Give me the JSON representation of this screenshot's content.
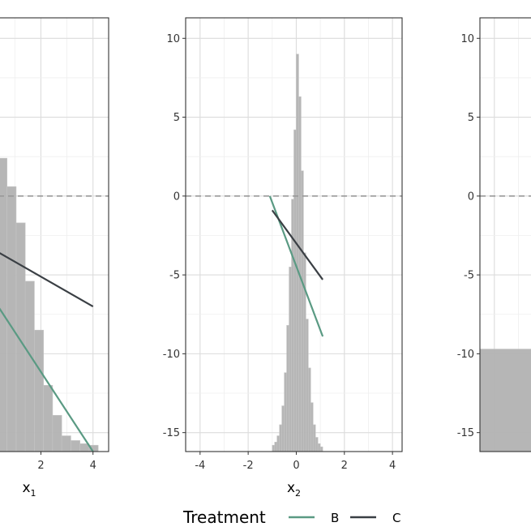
{
  "chart_data": [
    {
      "type": "line",
      "panel": "left",
      "xlabel": "x",
      "xlabel_sub": "1",
      "xlim": [
        -1.5,
        4.6
      ],
      "ylim": [
        -16.2,
        11.3
      ],
      "x_ticks": [
        0,
        2,
        4
      ],
      "y_ticks": [
        10,
        5,
        0,
        -5,
        -10,
        -15
      ],
      "show_y_tick_labels": false,
      "reference_line_y": 0,
      "histogram": {
        "bin_width": 0.35,
        "bins": [
          {
            "x0": -1.4,
            "height": 10.5
          },
          {
            "x0": -1.05,
            "height": 10.0
          },
          {
            "x0": -0.7,
            "height": 8.6
          },
          {
            "x0": -0.35,
            "height": 6.3
          },
          {
            "x0": 0.0,
            "height": 4.4
          },
          {
            "x0": 0.35,
            "height": 2.4
          },
          {
            "x0": 0.7,
            "height": 0.6
          },
          {
            "x0": 1.05,
            "height": -1.7
          },
          {
            "x0": 1.4,
            "height": -5.4
          },
          {
            "x0": 1.75,
            "height": -8.5
          },
          {
            "x0": 2.1,
            "height": -12.0
          },
          {
            "x0": 2.45,
            "height": -13.9
          },
          {
            "x0": 2.8,
            "height": -15.2
          },
          {
            "x0": 3.15,
            "height": -15.5
          },
          {
            "x0": 3.5,
            "height": -15.7
          },
          {
            "x0": 3.85,
            "height": -15.8
          }
        ]
      },
      "series": [
        {
          "name": "B",
          "color": "#5a9a83",
          "x": [
            -1.5,
            4.0
          ],
          "y": [
            -2.3,
            -16.2
          ]
        },
        {
          "name": "C",
          "color": "#3a3f44",
          "x": [
            -1.5,
            4.0
          ],
          "y": [
            -1.8,
            -7.0
          ]
        }
      ]
    },
    {
      "type": "line",
      "panel": "middle",
      "xlabel": "x",
      "xlabel_sub": "2",
      "xlim": [
        -4.6,
        4.4
      ],
      "ylim": [
        -16.2,
        11.3
      ],
      "x_ticks": [
        -4,
        -2,
        0,
        2,
        4
      ],
      "x_tick_labels": [
        "-4",
        "-2",
        "0",
        "2",
        "4"
      ],
      "y_ticks": [
        10,
        5,
        0,
        -5,
        -10,
        -15
      ],
      "y_tick_labels": [
        "10",
        "5",
        "0",
        "-5",
        "-10",
        "-15"
      ],
      "show_y_tick_labels": true,
      "reference_line_y": 0,
      "histogram": {
        "bin_width": 0.1,
        "bins": [
          {
            "x0": -1.0,
            "height": -15.8
          },
          {
            "x0": -0.9,
            "height": -15.6
          },
          {
            "x0": -0.8,
            "height": -15.2
          },
          {
            "x0": -0.7,
            "height": -14.5
          },
          {
            "x0": -0.6,
            "height": -13.3
          },
          {
            "x0": -0.5,
            "height": -11.2
          },
          {
            "x0": -0.4,
            "height": -8.2
          },
          {
            "x0": -0.3,
            "height": -4.5
          },
          {
            "x0": -0.2,
            "height": -0.2
          },
          {
            "x0": -0.1,
            "height": 4.2
          },
          {
            "x0": 0.0,
            "height": 9.0
          },
          {
            "x0": 0.1,
            "height": 6.3
          },
          {
            "x0": 0.2,
            "height": 1.6
          },
          {
            "x0": 0.3,
            "height": -3.6
          },
          {
            "x0": 0.4,
            "height": -7.8
          },
          {
            "x0": 0.5,
            "height": -10.9
          },
          {
            "x0": 0.6,
            "height": -13.1
          },
          {
            "x0": 0.7,
            "height": -14.5
          },
          {
            "x0": 0.8,
            "height": -15.3
          },
          {
            "x0": 0.9,
            "height": -15.7
          },
          {
            "x0": 1.0,
            "height": -15.9
          }
        ]
      },
      "series": [
        {
          "name": "B",
          "color": "#5a9a83",
          "x": [
            -1.1,
            1.1
          ],
          "y": [
            0.0,
            -8.9
          ]
        },
        {
          "name": "C",
          "color": "#3a3f44",
          "x": [
            -1.0,
            1.1
          ],
          "y": [
            -0.9,
            -5.3
          ]
        }
      ]
    },
    {
      "type": "line",
      "panel": "right",
      "xlim": [
        -4.6,
        4.4
      ],
      "ylim": [
        -16.2,
        11.3
      ],
      "y_ticks": [
        10,
        5,
        0,
        -5,
        -10,
        -15
      ],
      "y_tick_labels": [
        "10",
        "5",
        "0",
        "-5",
        "-10",
        "-15"
      ],
      "show_y_tick_labels": true,
      "reference_line_y": 0,
      "histogram": {
        "bin_width": 3.7,
        "bins": [
          {
            "x0": -4.6,
            "height": -9.7
          }
        ]
      },
      "series": []
    }
  ],
  "legend": {
    "title": "Treatment",
    "position": "bottom",
    "entries": [
      {
        "label": "B",
        "color": "#5a9a83"
      },
      {
        "label": "C",
        "color": "#3a3f44"
      }
    ]
  }
}
